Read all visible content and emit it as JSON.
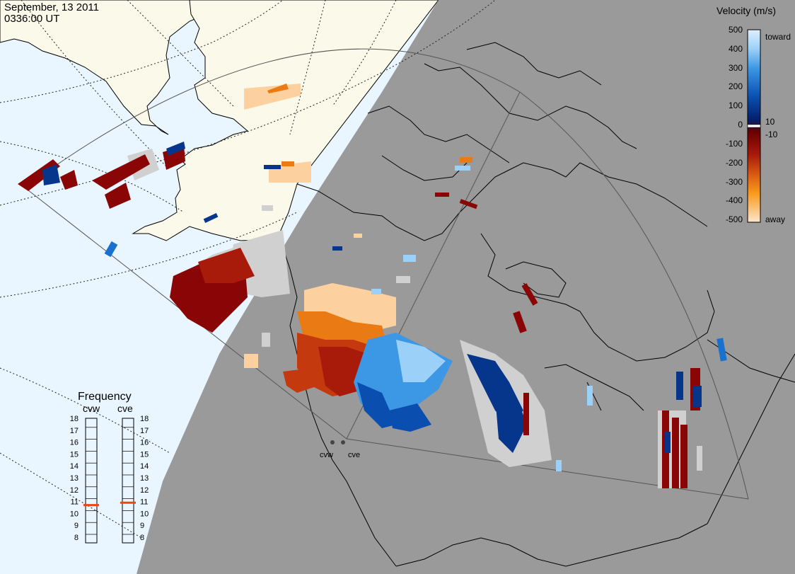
{
  "header": {
    "date": "September, 13 2011",
    "time": "0336:00 UT"
  },
  "colors": {
    "dayside": "#e9f6ff",
    "nightside": "#9a9a9a",
    "land_day": "#fbf9ea",
    "ground_scatter": "#d0d0d0",
    "frequency_marker": "#e64a10"
  },
  "velocity_legend": {
    "title": "Velocity (m/s)",
    "ticks": [
      "500",
      "400",
      "300",
      "200",
      "100",
      "0",
      "-100",
      "-200",
      "-300",
      "-400",
      "-500"
    ],
    "near_zero_labels": [
      "10",
      "-10"
    ],
    "toward_label": "toward",
    "away_label": "away",
    "scale": [
      "#deeffe",
      "#bfe2fc",
      "#9bd0f8",
      "#6fb8f2",
      "#3c97e4",
      "#1871cf",
      "#0a4fb0",
      "#06358c",
      "#031f6b",
      "#6b0000",
      "#8a0606",
      "#a81a0a",
      "#c43a0e",
      "#d75a12",
      "#ea7a14",
      "#f99a1c",
      "#fdb55a",
      "#fdd0a0",
      "#fde6cc"
    ]
  },
  "frequency_panel": {
    "title": "Frequency",
    "radars": [
      "cvw",
      "cve"
    ],
    "ticks": [
      "18",
      "17",
      "16",
      "15",
      "14",
      "13",
      "12",
      "11",
      "10",
      "9",
      "8"
    ],
    "cvw_mhz": 10.7,
    "cve_mhz": 10.9
  },
  "radar_sites": [
    {
      "name": "cvw"
    },
    {
      "name": "cve"
    }
  ]
}
